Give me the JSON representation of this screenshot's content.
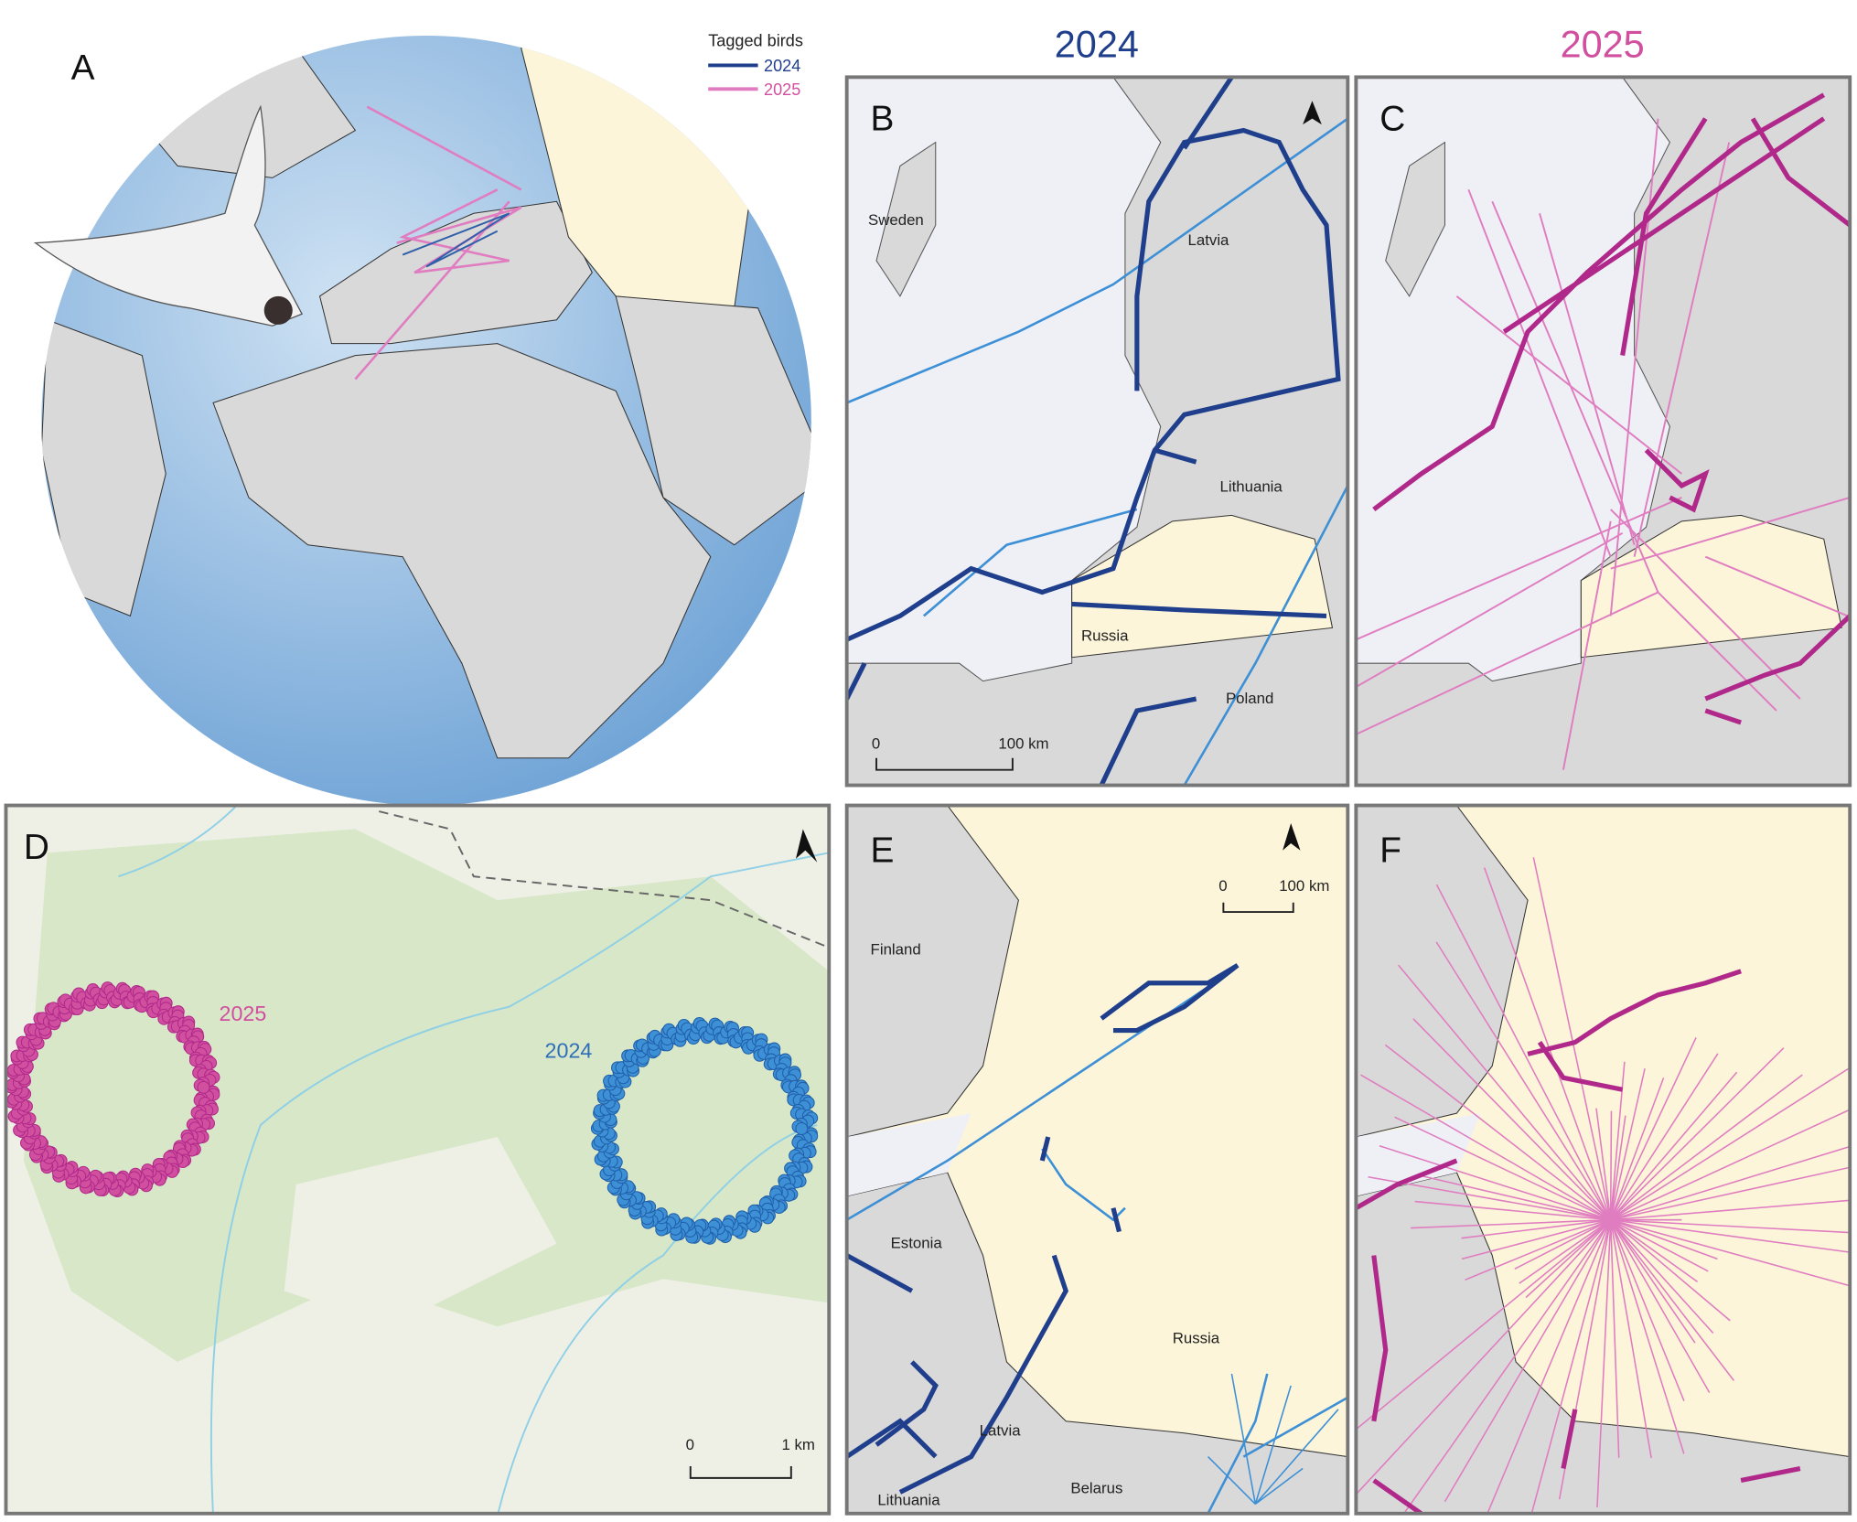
{
  "legend": {
    "title": "Tagged birds",
    "items": [
      "2024",
      "2025"
    ]
  },
  "headers": [
    "2024",
    "2025"
  ],
  "panels": [
    {
      "letter": "A"
    },
    {
      "letter": "B",
      "labels": [
        "Sweden",
        "Latvia",
        "Lithuania",
        "Russia",
        "Poland"
      ],
      "scale": [
        "0",
        "100 km"
      ]
    },
    {
      "letter": "C"
    },
    {
      "letter": "D",
      "labels": [
        "2025",
        "2024"
      ],
      "scale": [
        "0",
        "1 km"
      ]
    },
    {
      "letter": "E",
      "labels": [
        "Finland",
        "Estonia",
        "Russia",
        "Latvia",
        "Lithuania",
        "Belarus"
      ],
      "scale": [
        "0",
        "100 km"
      ]
    },
    {
      "letter": "F"
    }
  ]
}
